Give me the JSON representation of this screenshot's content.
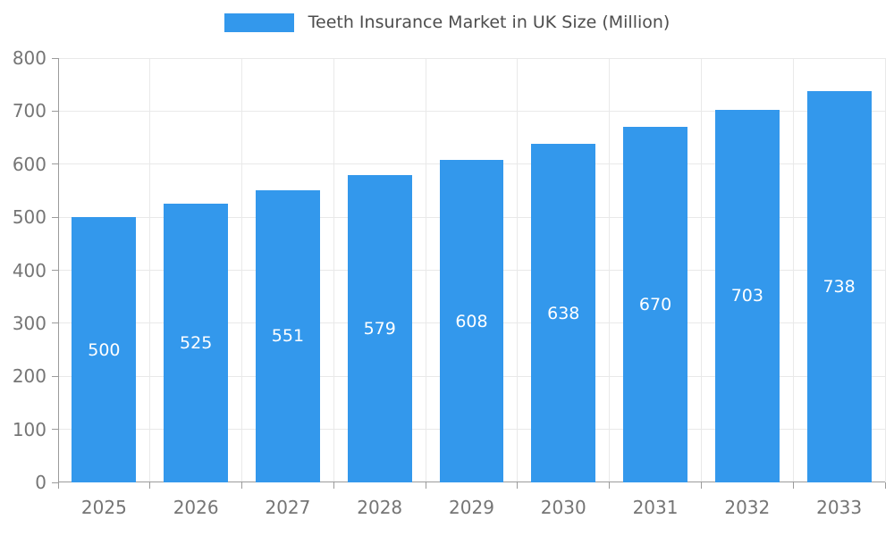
{
  "chart_data": {
    "type": "bar",
    "title": "Teeth Insurance Market in UK Size (Million)",
    "categories": [
      "2025",
      "2026",
      "2027",
      "2028",
      "2029",
      "2030",
      "2031",
      "2032",
      "2033"
    ],
    "values": [
      500,
      525,
      551,
      579,
      608,
      638,
      670,
      703,
      738
    ],
    "xlabel": "",
    "ylabel": "",
    "ylim": [
      0,
      800
    ],
    "yticks": [
      0,
      100,
      200,
      300,
      400,
      500,
      600,
      700,
      800
    ],
    "grid": true,
    "legend_position": "top",
    "colors": {
      "bar": "#3398EC",
      "bar_value_label": "#ffffff",
      "axis_tick_label": "#757575",
      "title_text": "#4d4d4d",
      "gridline": "#e9e9e9",
      "axis_line": "#9b9b9b"
    }
  }
}
